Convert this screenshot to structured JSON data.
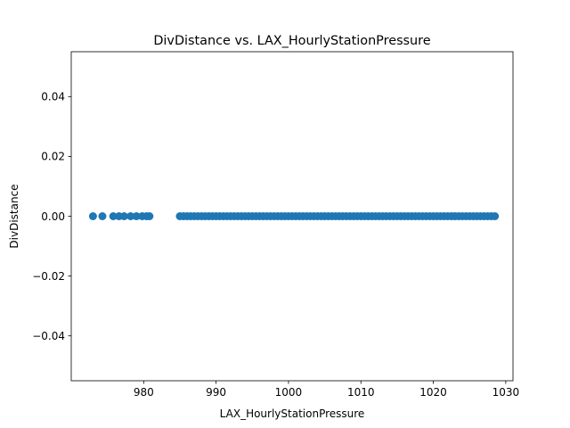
{
  "chart_data": {
    "type": "scatter",
    "title": "DivDistance vs. LAX_HourlyStationPressure",
    "xlabel": "LAX_HourlyStationPressure",
    "ylabel": "DivDistance",
    "xlim": [
      970.0,
      1031.0
    ],
    "ylim": [
      -0.055,
      0.055
    ],
    "x_ticks": [
      980,
      990,
      1000,
      1010,
      1020,
      1030
    ],
    "y_ticks": [
      -0.04,
      -0.02,
      0.0,
      0.02,
      0.04
    ],
    "y_tick_labels": [
      "−0.04",
      "−0.02",
      "0.00",
      "0.02",
      "0.04"
    ],
    "grid": false,
    "marker_color": "#1f77b4",
    "series": [
      {
        "points": [
          [
            973.0,
            0
          ],
          [
            974.3,
            0
          ],
          [
            975.8,
            0
          ],
          [
            976.6,
            0
          ],
          [
            977.3,
            0
          ],
          [
            978.2,
            0
          ],
          [
            979.0,
            0
          ],
          [
            979.8,
            0
          ],
          [
            980.4,
            0
          ],
          [
            980.8,
            0
          ],
          [
            985.0,
            0
          ],
          [
            985.5,
            0
          ],
          [
            986.0,
            0
          ],
          [
            986.5,
            0
          ],
          [
            987.0,
            0
          ],
          [
            987.5,
            0
          ],
          [
            988.0,
            0
          ],
          [
            988.5,
            0
          ],
          [
            989.0,
            0
          ],
          [
            989.5,
            0
          ],
          [
            990.0,
            0
          ],
          [
            990.5,
            0
          ],
          [
            991.0,
            0
          ],
          [
            991.5,
            0
          ],
          [
            992.0,
            0
          ],
          [
            992.5,
            0
          ],
          [
            993.0,
            0
          ],
          [
            993.5,
            0
          ],
          [
            994.0,
            0
          ],
          [
            994.5,
            0
          ],
          [
            995.0,
            0
          ],
          [
            995.5,
            0
          ],
          [
            996.0,
            0
          ],
          [
            996.5,
            0
          ],
          [
            997.0,
            0
          ],
          [
            997.5,
            0
          ],
          [
            998.0,
            0
          ],
          [
            998.5,
            0
          ],
          [
            999.0,
            0
          ],
          [
            999.5,
            0
          ],
          [
            1000.0,
            0
          ],
          [
            1000.5,
            0
          ],
          [
            1001.0,
            0
          ],
          [
            1001.5,
            0
          ],
          [
            1002.0,
            0
          ],
          [
            1002.5,
            0
          ],
          [
            1003.0,
            0
          ],
          [
            1003.5,
            0
          ],
          [
            1004.0,
            0
          ],
          [
            1004.5,
            0
          ],
          [
            1005.0,
            0
          ],
          [
            1005.5,
            0
          ],
          [
            1006.0,
            0
          ],
          [
            1006.5,
            0
          ],
          [
            1007.0,
            0
          ],
          [
            1007.5,
            0
          ],
          [
            1008.0,
            0
          ],
          [
            1008.5,
            0
          ],
          [
            1009.0,
            0
          ],
          [
            1009.5,
            0
          ],
          [
            1010.0,
            0
          ],
          [
            1010.5,
            0
          ],
          [
            1011.0,
            0
          ],
          [
            1011.5,
            0
          ],
          [
            1012.0,
            0
          ],
          [
            1012.5,
            0
          ],
          [
            1013.0,
            0
          ],
          [
            1013.5,
            0
          ],
          [
            1014.0,
            0
          ],
          [
            1014.5,
            0
          ],
          [
            1015.0,
            0
          ],
          [
            1015.5,
            0
          ],
          [
            1016.0,
            0
          ],
          [
            1016.5,
            0
          ],
          [
            1017.0,
            0
          ],
          [
            1017.5,
            0
          ],
          [
            1018.0,
            0
          ],
          [
            1018.5,
            0
          ],
          [
            1019.0,
            0
          ],
          [
            1019.5,
            0
          ],
          [
            1020.0,
            0
          ],
          [
            1020.5,
            0
          ],
          [
            1021.0,
            0
          ],
          [
            1021.5,
            0
          ],
          [
            1022.0,
            0
          ],
          [
            1022.5,
            0
          ],
          [
            1023.0,
            0
          ],
          [
            1023.5,
            0
          ],
          [
            1024.0,
            0
          ],
          [
            1024.5,
            0
          ],
          [
            1025.0,
            0
          ],
          [
            1025.5,
            0
          ],
          [
            1026.0,
            0
          ],
          [
            1026.5,
            0
          ],
          [
            1027.0,
            0
          ],
          [
            1027.5,
            0
          ],
          [
            1028.0,
            0
          ],
          [
            1028.5,
            0
          ]
        ]
      }
    ]
  }
}
